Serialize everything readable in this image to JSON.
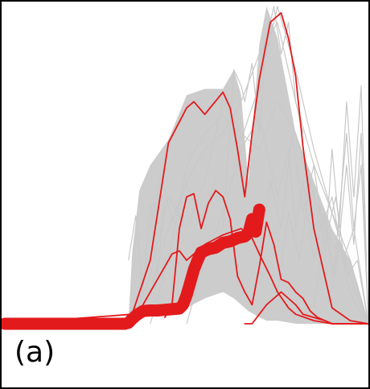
{
  "panel_label": "(a)",
  "colors": {
    "band": "#cccccc",
    "band_line": "#c8c8c8",
    "highlight": "#e31a1c",
    "frame": "#000000"
  },
  "chart_data": {
    "type": "line",
    "title": "",
    "xlabel": "",
    "ylabel": "",
    "xlim": [
      0,
      100
    ],
    "ylim": [
      0,
      100
    ],
    "grid": false,
    "legend": "none",
    "band": {
      "x": [
        0,
        34,
        35,
        37,
        40,
        45,
        50,
        55,
        60,
        63,
        65,
        67,
        70,
        72,
        75,
        80,
        85,
        90,
        95,
        100
      ],
      "lower": [
        0,
        0,
        2,
        3,
        4,
        4,
        5,
        8,
        10,
        8,
        6,
        4,
        2,
        1,
        1,
        0,
        0,
        0,
        0,
        0
      ],
      "upper": [
        0,
        0,
        22,
        42,
        50,
        58,
        72,
        74,
        74,
        80,
        72,
        45,
        88,
        100,
        90,
        60,
        45,
        30,
        20,
        0
      ]
    },
    "background_series": [
      {
        "x": [
          35,
          40,
          45,
          50,
          55,
          60,
          65,
          70,
          75,
          80,
          85,
          90,
          95,
          100
        ],
        "y": [
          0,
          15,
          40,
          30,
          45,
          70,
          60,
          55,
          70,
          60,
          40,
          25,
          20,
          0
        ]
      },
      {
        "x": [
          35,
          40,
          45,
          50,
          55,
          60,
          65,
          70,
          75,
          80,
          85,
          90,
          95,
          100
        ],
        "y": [
          0,
          10,
          30,
          45,
          55,
          60,
          70,
          85,
          95,
          70,
          50,
          35,
          15,
          0
        ]
      },
      {
        "x": [
          40,
          45,
          50,
          55,
          60,
          65,
          70,
          75,
          80,
          85,
          90,
          95,
          100
        ],
        "y": [
          0,
          20,
          50,
          60,
          66,
          58,
          75,
          100,
          80,
          55,
          35,
          20,
          0
        ]
      },
      {
        "x": [
          50,
          55,
          60,
          65,
          70,
          75,
          78,
          80,
          82,
          85,
          88,
          90,
          92,
          95,
          97,
          100
        ],
        "y": [
          0,
          20,
          35,
          55,
          65,
          40,
          55,
          30,
          45,
          20,
          35,
          15,
          25,
          10,
          5,
          0
        ]
      },
      {
        "x": [
          70,
          73,
          76,
          79,
          82,
          85,
          88,
          91,
          94,
          97,
          100
        ],
        "y": [
          20,
          45,
          30,
          60,
          35,
          50,
          25,
          40,
          15,
          20,
          0
        ]
      },
      {
        "x": [
          75,
          78,
          81,
          84,
          87,
          90,
          93,
          96,
          100
        ],
        "y": [
          10,
          35,
          20,
          45,
          30,
          40,
          20,
          30,
          0
        ]
      },
      {
        "x": [
          85,
          88,
          91,
          94,
          96,
          98,
          100
        ],
        "y": [
          5,
          30,
          15,
          50,
          25,
          60,
          0
        ]
      },
      {
        "x": [
          88,
          90,
          92,
          94,
          96,
          98,
          100
        ],
        "y": [
          20,
          55,
          30,
          70,
          40,
          75,
          0
        ]
      },
      {
        "x": [
          90,
          92,
          94,
          96,
          98,
          100
        ],
        "y": [
          10,
          35,
          60,
          30,
          50,
          0
        ]
      },
      {
        "x": [
          70,
          72,
          74,
          76,
          78,
          80,
          82
        ],
        "y": [
          60,
          90,
          100,
          85,
          95,
          70,
          60
        ]
      },
      {
        "x": [
          60,
          63,
          65,
          66,
          68,
          70
        ],
        "y": [
          30,
          80,
          75,
          70,
          82,
          60
        ]
      },
      {
        "x": [
          40,
          43,
          46,
          50,
          54,
          58
        ],
        "y": [
          30,
          47,
          32,
          44,
          33,
          46
        ]
      },
      {
        "x": [
          34,
          36,
          38,
          40,
          42,
          44
        ],
        "y": [
          20,
          34,
          10,
          38,
          15,
          40
        ]
      }
    ],
    "highlight_series": [
      {
        "role": "outline",
        "x": [
          0,
          35,
          40,
          45,
          50,
          52,
          55,
          60,
          62,
          64,
          66,
          68,
          70,
          73,
          76,
          78,
          80,
          82,
          85,
          90,
          95,
          100
        ],
        "y": [
          0,
          3,
          20,
          57,
          68,
          70,
          66,
          73,
          68,
          55,
          40,
          60,
          77,
          95,
          98,
          90,
          78,
          56,
          30,
          5,
          1,
          0
        ]
      },
      {
        "role": "outline",
        "x": [
          44,
          46,
          48,
          50,
          52,
          54,
          56,
          58,
          60,
          62,
          64,
          66,
          68,
          70,
          72,
          74,
          76,
          78,
          80,
          82,
          84,
          86,
          88,
          90,
          92,
          95
        ],
        "y": [
          2,
          6,
          30,
          40,
          41,
          30,
          38,
          42,
          40,
          33,
          15,
          10,
          6,
          18,
          32,
          25,
          14,
          13,
          10,
          8,
          4,
          2,
          1,
          0,
          0,
          0
        ]
      },
      {
        "role": "outline",
        "x": [
          35,
          40,
          45,
          46,
          48,
          50,
          55,
          60,
          65,
          68,
          70,
          73,
          75,
          78,
          80,
          85,
          90,
          100
        ],
        "y": [
          0,
          10,
          20,
          22,
          23,
          20,
          25,
          28,
          30,
          27,
          22,
          15,
          10,
          5,
          3,
          1,
          0,
          0
        ]
      },
      {
        "role": "outline",
        "x": [
          66,
          68,
          70,
          72,
          74,
          76,
          78,
          80,
          82,
          85,
          88,
          90,
          95,
          100
        ],
        "y": [
          0,
          0,
          3,
          6,
          8,
          10,
          8,
          6,
          3,
          2,
          1,
          0,
          0,
          0
        ]
      },
      {
        "role": "mean",
        "x": [
          0,
          5,
          10,
          15,
          20,
          25,
          30,
          33,
          34,
          35,
          36,
          37,
          38,
          40,
          42,
          44,
          46,
          48,
          49,
          50,
          51,
          52,
          53,
          54,
          56,
          58,
          60,
          62,
          64,
          66,
          67,
          68,
          69,
          70
        ],
        "y": [
          0,
          0,
          0,
          0,
          0,
          0,
          0,
          0,
          0.3,
          1.5,
          2.5,
          3.3,
          4,
          4.2,
          4.2,
          4.4,
          4.6,
          4.8,
          6,
          9,
          13,
          17,
          20,
          22.5,
          23.5,
          24,
          25.5,
          26,
          27,
          27.5,
          28.5,
          33,
          29,
          36
        ]
      }
    ]
  }
}
